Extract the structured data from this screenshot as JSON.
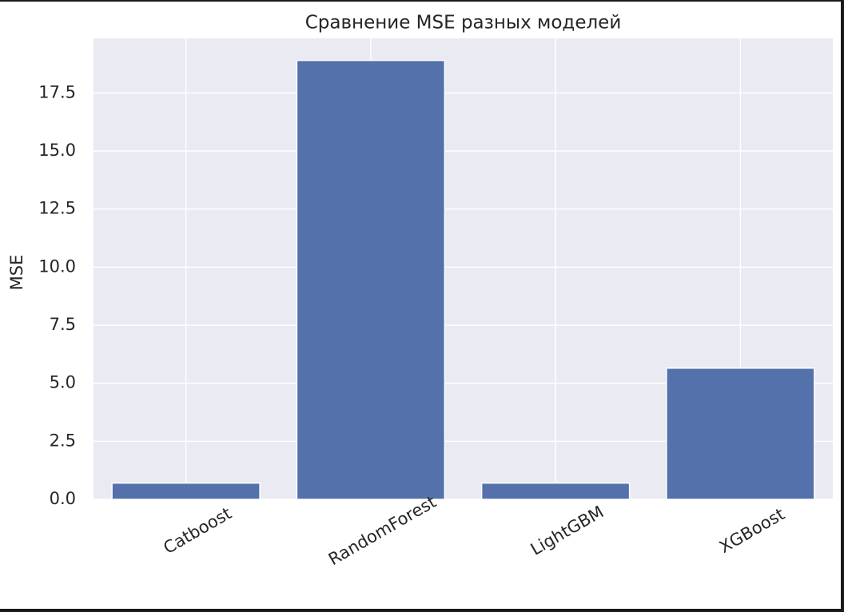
{
  "chart_data": {
    "type": "bar",
    "title": "Сравнение MSE разных моделей",
    "xlabel": "",
    "ylabel": "MSE",
    "categories": [
      "Catboost",
      "RandomForest",
      "LightGBM",
      "XGBoost"
    ],
    "values": [
      0.7,
      18.9,
      0.7,
      5.65
    ],
    "ylim": [
      0,
      19.85
    ],
    "yticks": [
      "0.0",
      "2.5",
      "5.0",
      "7.5",
      "10.0",
      "12.5",
      "15.0",
      "17.5"
    ],
    "grid": true,
    "x_tick_rotation": 30,
    "colors": {
      "bar": "#5471ab",
      "plot_background": "#eaeaf2",
      "grid": "#ffffff",
      "text": "#262626"
    }
  }
}
